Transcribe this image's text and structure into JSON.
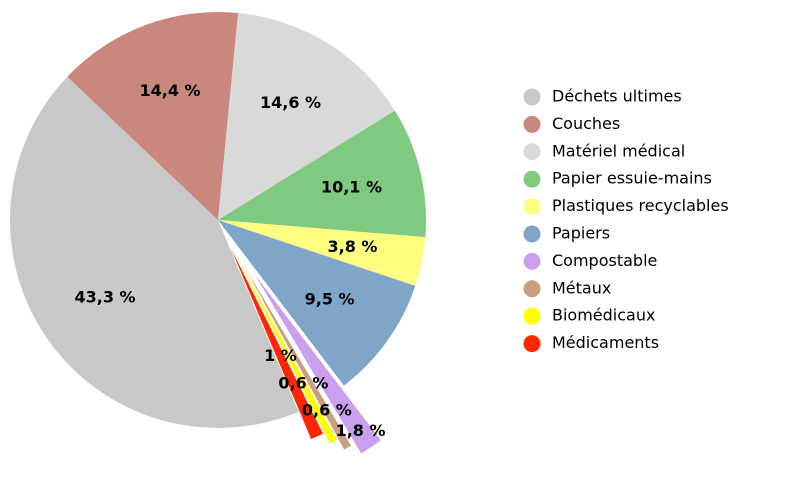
{
  "chart_data": {
    "type": "pie",
    "categories": [
      "Déchets ultimes",
      "Couches",
      "Matériel médical",
      "Papier essuie-mains",
      "Plastiques recyclables",
      "Papiers",
      "Compostable",
      "Métaux",
      "Biomédicaux",
      "Médicaments"
    ],
    "values": [
      43.3,
      14.4,
      14.6,
      10.1,
      3.8,
      9.5,
      1.8,
      0.6,
      0.6,
      1
    ],
    "value_labels": [
      "43,3 %",
      "14,4 %",
      "14,6 %",
      "10,1 %",
      "3,8 %",
      "9,5 %",
      "1,8 %",
      "0,6 %",
      "0,6 %",
      "1 %"
    ],
    "colors": [
      "#c8c8c8",
      "#c9877d",
      "#d9d9d9",
      "#80c980",
      "#fdfd80",
      "#7fa6c9",
      "#c9a0f0",
      "#c8a07d",
      "#ffff00",
      "#ff2600"
    ],
    "legend": "right"
  }
}
